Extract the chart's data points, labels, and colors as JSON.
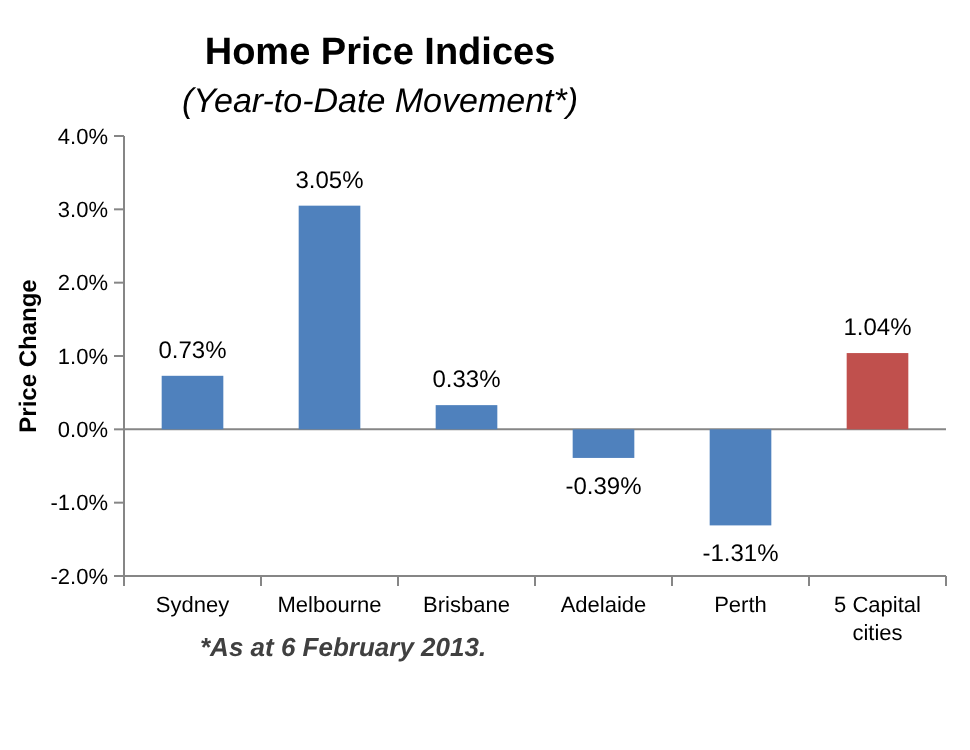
{
  "chart_data": {
    "type": "bar",
    "title": "Home Price Indices",
    "subtitle": "(Year-to-Date Movement*)",
    "ylabel": "Price Change",
    "categories": [
      "Sydney",
      "Melbourne",
      "Brisbane",
      "Adelaide",
      "Perth",
      "5 Capital cities"
    ],
    "values": [
      0.73,
      3.05,
      0.33,
      -0.39,
      -1.31,
      1.04
    ],
    "colors": [
      "#4f81bd",
      "#4f81bd",
      "#4f81bd",
      "#4f81bd",
      "#4f81bd",
      "#c0504d"
    ],
    "value_labels": [
      "0.73%",
      "3.05%",
      "0.33%",
      "-0.39%",
      "-1.31%",
      "1.04%"
    ],
    "ylim": [
      -2,
      4
    ],
    "yticks": [
      {
        "value": -2,
        "label": "-2.0%"
      },
      {
        "value": -1,
        "label": "-1.0%"
      },
      {
        "value": 0,
        "label": "0.0%"
      },
      {
        "value": 1,
        "label": "1.0%"
      },
      {
        "value": 2,
        "label": "2.0%"
      },
      {
        "value": 3,
        "label": "3.0%"
      },
      {
        "value": 4,
        "label": "4.0%"
      }
    ],
    "annotations": [
      "*As at 6 February 2013."
    ]
  }
}
